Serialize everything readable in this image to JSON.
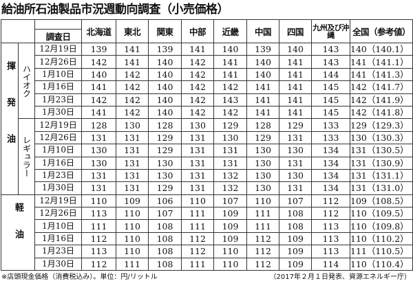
{
  "title": "給油所石油製品市況週動向調査（小売価格）",
  "header": {
    "date_label": "調査日",
    "regions": [
      "北海道",
      "東北",
      "関東",
      "中部",
      "近畿",
      "中国",
      "四国",
      "九州及び沖縄",
      "全国（参考値）"
    ]
  },
  "groups": [
    {
      "label": "揮発油",
      "subgroups": [
        {
          "label": "ハイオク",
          "rows": [
            {
              "date": "12月19日",
              "values": [
                "139",
                "141",
                "139",
                "141",
                "140",
                "139",
                "140",
                "143"
              ],
              "national": "140（140.1）"
            },
            {
              "date": "12月26日",
              "values": [
                "142",
                "141",
                "140",
                "142",
                "141",
                "140",
                "141",
                "143"
              ],
              "national": "141（141.1）"
            },
            {
              "date": "1月10日",
              "values": [
                "140",
                "142",
                "140",
                "142",
                "141",
                "140",
                "141",
                "144"
              ],
              "national": "141（141.3）"
            },
            {
              "date": "1月16日",
              "values": [
                "141",
                "142",
                "140",
                "142",
                "142",
                "141",
                "141",
                "145"
              ],
              "national": "142（141.7）"
            },
            {
              "date": "1月23日",
              "values": [
                "142",
                "142",
                "140",
                "142",
                "143",
                "141",
                "141",
                "145"
              ],
              "national": "142（141.9）"
            },
            {
              "date": "1月30日",
              "values": [
                "141",
                "142",
                "140",
                "142",
                "142",
                "141",
                "141",
                "145"
              ],
              "national": "142（141.8）"
            }
          ]
        },
        {
          "label": "レギュラー",
          "rows": [
            {
              "date": "12月19日",
              "values": [
                "128",
                "130",
                "128",
                "130",
                "129",
                "128",
                "129",
                "133"
              ],
              "national": "129（129.3）"
            },
            {
              "date": "12月26日",
              "values": [
                "131",
                "131",
                "129",
                "131",
                "130",
                "129",
                "131",
                "133"
              ],
              "national": "130（130.3）"
            },
            {
              "date": "1月10日",
              "values": [
                "130",
                "131",
                "129",
                "131",
                "131",
                "130",
                "130",
                "134"
              ],
              "national": "131（130.5）"
            },
            {
              "date": "1月16日",
              "values": [
                "130",
                "131",
                "130",
                "131",
                "131",
                "130",
                "131",
                "134"
              ],
              "national": "131（130.9）"
            },
            {
              "date": "1月23日",
              "values": [
                "131",
                "131",
                "130",
                "131",
                "132",
                "130",
                "130",
                "134"
              ],
              "national": "131（131.1）"
            },
            {
              "date": "1月30日",
              "values": [
                "131",
                "131",
                "129",
                "131",
                "132",
                "130",
                "131",
                "134"
              ],
              "national": "131（131.0）"
            }
          ]
        }
      ]
    },
    {
      "label": "軽油",
      "subgroups": [
        {
          "label": "",
          "rows": [
            {
              "date": "12月19日",
              "values": [
                "110",
                "109",
                "106",
                "110",
                "107",
                "110",
                "107",
                "112"
              ],
              "national": "109（108.5）"
            },
            {
              "date": "12月26日",
              "values": [
                "113",
                "110",
                "107",
                "111",
                "109",
                "111",
                "108",
                "112"
              ],
              "national": "110（109.5）"
            },
            {
              "date": "1月10日",
              "values": [
                "111",
                "110",
                "108",
                "111",
                "109",
                "111",
                "108",
                "113"
              ],
              "national": "110（109.8）"
            },
            {
              "date": "1月16日",
              "values": [
                "112",
                "110",
                "108",
                "112",
                "109",
                "112",
                "109",
                "113"
              ],
              "national": "110（110.2）"
            },
            {
              "date": "1月23日",
              "values": [
                "113",
                "110",
                "108",
                "112",
                "110",
                "112",
                "109",
                "113"
              ],
              "national": "111（110.5）"
            },
            {
              "date": "1月30日",
              "values": [
                "112",
                "111",
                "108",
                "111",
                "110",
                "112",
                "109",
                "114"
              ],
              "national": "110（110.4）"
            }
          ]
        }
      ]
    }
  ],
  "footer": {
    "note": "※店頭現金価格（消費税込み）。単位：円/リットル",
    "source": "（2017年２月１日発表、資源エネルギー庁）"
  }
}
